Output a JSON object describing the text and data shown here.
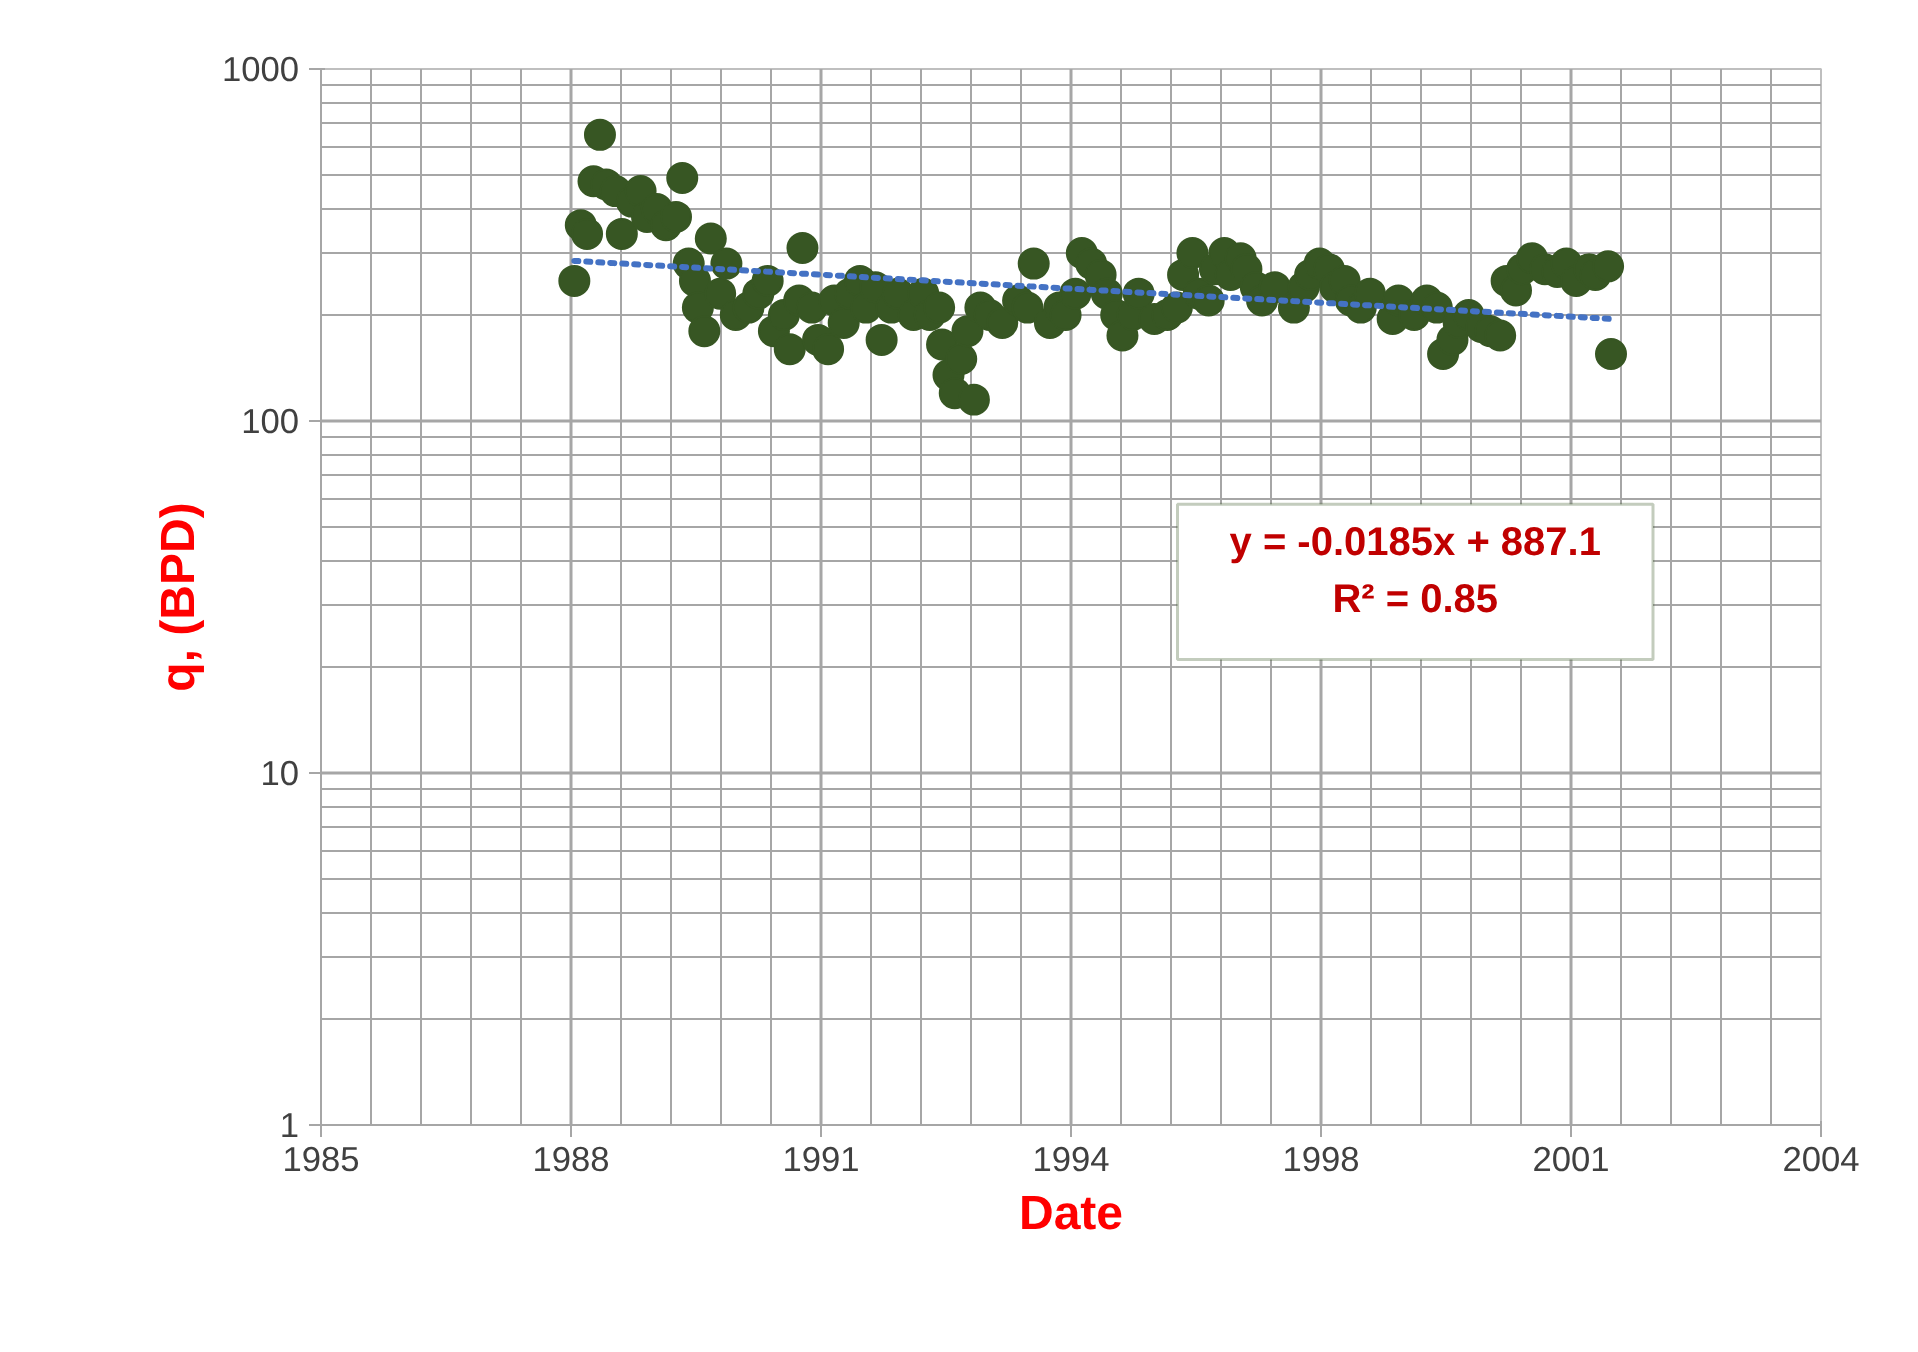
{
  "chart_data": {
    "type": "scatter",
    "xlabel": "Date",
    "ylabel": "q, (BPD)",
    "log": "y",
    "grid": true,
    "xlim": [
      "1985-01-01",
      "2004-09-18"
    ],
    "xticks": [
      {
        "value": "1985-01-01",
        "label": "1985"
      },
      {
        "value": "1988-04-15",
        "label": "1988"
      },
      {
        "value": "1991-07-29",
        "label": "1991"
      },
      {
        "value": "1994-11-10",
        "label": "1994"
      },
      {
        "value": "1998-02-22",
        "label": "1998"
      },
      {
        "value": "2001-06-06",
        "label": "2001"
      },
      {
        "value": "2004-09-18",
        "label": "2004"
      }
    ],
    "ylim": [
      1,
      1000
    ],
    "yticks": [
      1,
      10,
      100,
      1000
    ],
    "annotations": [
      "y = -0.0185x + 887.1",
      "R² = 0.85"
    ],
    "series": [
      {
        "color": "#375623",
        "marker": "circle",
        "x": [
          "1988-05-01",
          "1988-06-01",
          "1988-07-01",
          "1988-08-01",
          "1988-09-01",
          "1988-10-01",
          "1988-11-15",
          "1988-12-15",
          "1989-02-01",
          "1989-03-15",
          "1989-04-15",
          "1989-06-01",
          "1989-07-15",
          "1989-09-01",
          "1989-10-01",
          "1989-11-01",
          "1989-12-01",
          "1989-12-15",
          "1990-01-15",
          "1990-02-15",
          "1990-04-01",
          "1990-05-01",
          "1990-06-15",
          "1990-08-15",
          "1990-10-01",
          "1990-11-15",
          "1990-12-15",
          "1991-02-01",
          "1991-03-01",
          "1991-04-15",
          "1991-05-01",
          "1991-06-15",
          "1991-07-15",
          "1991-09-01",
          "1991-10-01",
          "1991-11-15",
          "1991-12-15",
          "1992-02-01",
          "1992-03-01",
          "1992-04-15",
          "1992-05-15",
          "1992-07-01",
          "1992-08-01",
          "1992-10-15",
          "1992-12-01",
          "1993-01-01",
          "1993-02-15",
          "1993-03-01",
          "1993-04-01",
          "1993-05-01",
          "1993-06-01",
          "1993-07-01",
          "1993-08-01",
          "1993-09-01",
          "1993-10-15",
          "1993-12-15",
          "1994-03-01",
          "1994-04-15",
          "1994-05-15",
          "1994-08-01",
          "1994-09-15",
          "1994-10-15",
          "1994-12-01",
          "1995-01-01",
          "1995-02-15",
          "1995-04-01",
          "1995-05-01",
          "1995-06-15",
          "1995-07-15",
          "1995-09-01",
          "1995-10-01",
          "1995-12-15",
          "1996-02-15",
          "1996-04-01",
          "1996-05-01",
          "1996-06-15",
          "1996-07-15",
          "1996-09-01",
          "1996-10-01",
          "1996-11-15",
          "1996-12-15",
          "1997-02-01",
          "1997-03-01",
          "1997-04-15",
          "1997-05-15",
          "1997-07-15",
          "1997-10-15",
          "1997-12-01",
          "1998-01-01",
          "1998-02-15",
          "1998-04-01",
          "1998-05-01",
          "1998-06-15",
          "1998-07-15",
          "1998-09-01",
          "1998-10-15",
          "1999-02-01",
          "1999-03-01",
          "1999-05-15",
          "1999-07-15",
          "1999-09-01",
          "1999-10-01",
          "1999-11-15",
          "1999-12-15",
          "2000-02-01",
          "2000-04-01",
          "2000-05-15",
          "2000-07-01",
          "2000-08-01",
          "2000-09-15",
          "2000-10-15",
          "2000-12-01",
          "2001-02-01",
          "2001-04-01",
          "2001-05-15",
          "2001-07-01",
          "2001-09-01",
          "2001-10-01",
          "2001-12-01",
          "2001-12-15"
        ],
        "values": [
          250,
          360,
          340,
          480,
          650,
          470,
          450,
          340,
          420,
          450,
          380,
          400,
          360,
          380,
          490,
          280,
          250,
          210,
          180,
          330,
          230,
          280,
          200,
          210,
          230,
          250,
          180,
          200,
          160,
          220,
          310,
          210,
          170,
          160,
          220,
          190,
          230,
          250,
          210,
          240,
          170,
          210,
          230,
          200,
          230,
          200,
          210,
          165,
          135,
          120,
          150,
          180,
          115,
          210,
          200,
          190,
          220,
          210,
          280,
          190,
          210,
          200,
          230,
          300,
          280,
          260,
          230,
          200,
          175,
          200,
          230,
          195,
          200,
          210,
          260,
          300,
          230,
          220,
          270,
          300,
          260,
          290,
          270,
          240,
          220,
          240,
          210,
          240,
          260,
          280,
          270,
          240,
          250,
          220,
          210,
          230,
          195,
          220,
          200,
          220,
          210,
          155,
          170,
          190,
          200,
          185,
          180,
          175,
          250,
          235,
          270,
          290,
          270,
          265,
          280,
          250,
          270,
          260,
          275,
          155
        ]
      },
      {
        "type": "line",
        "color": "#4472c4",
        "line_style": "dotted",
        "x": [
          "1988-05-01",
          "2001-12-15"
        ],
        "values": [
          285,
          195
        ]
      }
    ]
  }
}
